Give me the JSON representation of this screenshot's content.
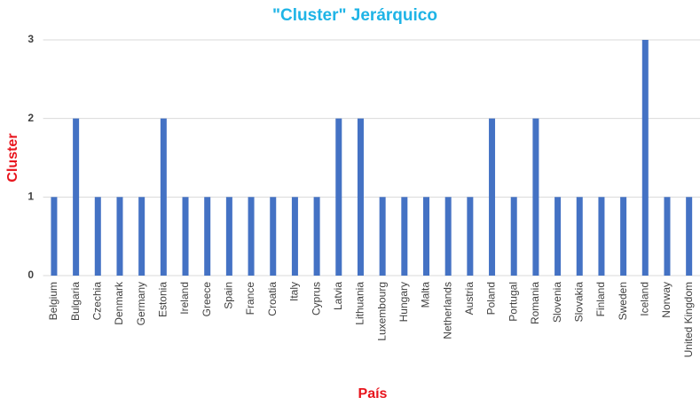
{
  "chart_data": {
    "type": "bar",
    "title": "\"Cluster\" Jerárquico",
    "x_label": "País",
    "y_label": "Cluster",
    "categories": [
      "Belgium",
      "Bulgaria",
      "Czechia",
      "Denmark",
      "Germany",
      "Estonia",
      "Ireland",
      "Greece",
      "Spain",
      "France",
      "Croatia",
      "Italy",
      "Cyprus",
      "Latvia",
      "Lithuania",
      "Luxembourg",
      "Hungary",
      "Malta",
      "Netherlands",
      "Austria",
      "Poland",
      "Portugal",
      "Romania",
      "Slovenia",
      "Slovakia",
      "Finland",
      "Sweden",
      "Iceland",
      "Norway",
      "United Kingdom"
    ],
    "values": [
      1,
      2,
      1,
      1,
      1,
      2,
      1,
      1,
      1,
      1,
      1,
      1,
      1,
      2,
      2,
      1,
      1,
      1,
      1,
      1,
      2,
      1,
      2,
      1,
      1,
      1,
      1,
      3,
      1,
      1
    ],
    "color": "#4472c4",
    "ylim": [
      0,
      3
    ],
    "yticks": [
      0,
      1,
      2,
      3
    ],
    "grid": true
  }
}
